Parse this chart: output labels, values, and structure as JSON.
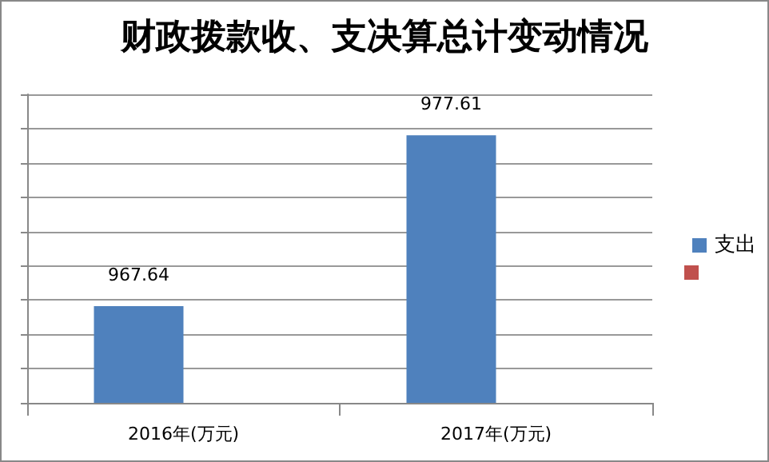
{
  "chart_data": {
    "type": "bar",
    "title": "财政拨款收、支决算总计变动情况",
    "categories": [
      "2016年(万元)",
      "2017年(万元)"
    ],
    "series": [
      {
        "name": "支出",
        "color": "#4f81bd",
        "values": [
          967.64,
          977.61
        ]
      },
      {
        "color": "#c0504d",
        "values": [
          null,
          null
        ]
      }
    ],
    "ylim": [
      962,
      980
    ],
    "yticks": [
      {
        "value": 962,
        "label": null
      },
      {
        "value": 964,
        "label": null
      },
      {
        "value": 966,
        "label": null
      },
      {
        "value": 968,
        "label": null
      },
      {
        "value": 970,
        "label": null
      },
      {
        "value": 972,
        "label": null
      },
      {
        "value": 974,
        "label": null
      },
      {
        "value": 976,
        "label": null
      },
      {
        "value": 978,
        "label": null
      },
      {
        "value": 980,
        "label": null
      }
    ],
    "tick_labels": "x",
    "data_labels": true,
    "grid": "y",
    "legend": "right"
  }
}
